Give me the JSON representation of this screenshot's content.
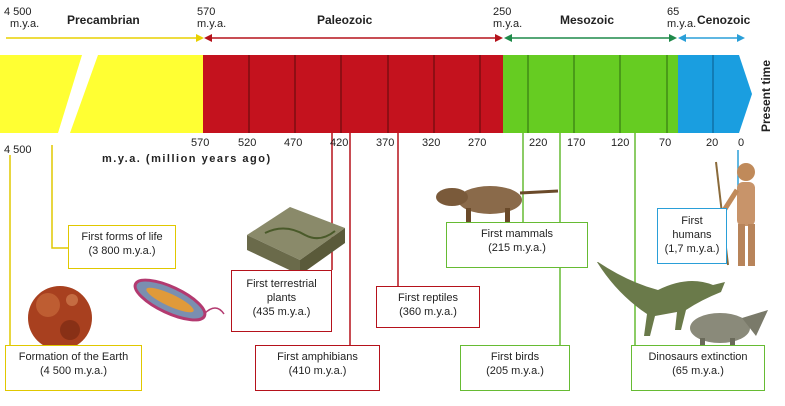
{
  "header": {
    "start": {
      "value": "4 500",
      "unit": "m.y.a."
    },
    "eras": [
      {
        "name": "Precambrian",
        "color": "#f5e300"
      },
      {
        "name": "Paleozoic",
        "color": "#b5121b"
      },
      {
        "name": "Mesozoic",
        "color": "#3a9a3a"
      },
      {
        "name": "Cenozoic",
        "color": "#2a9fd8"
      }
    ],
    "boundaries": [
      {
        "value": "570",
        "unit": "m.y.a."
      },
      {
        "value": "250",
        "unit": "m.y.a."
      },
      {
        "value": "65",
        "unit": "m.y.a."
      }
    ]
  },
  "bar": {
    "present_label": "Present time",
    "colors": {
      "precambrian": "#ffff33",
      "paleozoic": "#c4121e",
      "mesozoic": "#66cc22",
      "cenozoic": "#1a9ee0"
    }
  },
  "ticks": [
    "570",
    "520",
    "470",
    "420",
    "370",
    "320",
    "270",
    "220",
    "170",
    "120",
    "70",
    "20",
    "0"
  ],
  "left_tick": "4 500",
  "axis_label": "m.y.a. (million years ago)",
  "events": [
    {
      "title": "Formation of the Earth",
      "date": "(4 500 m.y.a.)",
      "color": "#e0c800"
    },
    {
      "title": "First forms of life",
      "date": "(3 800 m.y.a.)",
      "color": "#e0c800"
    },
    {
      "title": "First terrestrial plants",
      "date": "(435 m.y.a.)",
      "color": "#b5121b"
    },
    {
      "title": "First amphibians",
      "date": "(410 m.y.a.)",
      "color": "#b5121b"
    },
    {
      "title": "First reptiles",
      "date": "(360 m.y.a.)",
      "color": "#b5121b"
    },
    {
      "title": "First mammals",
      "date": "(215 m.y.a.)",
      "color": "#66bb33"
    },
    {
      "title": "First birds",
      "date": "(205 m.y.a.)",
      "color": "#66bb33"
    },
    {
      "title": "Dinosaurs extinction",
      "date": "(65 m.y.a.)",
      "color": "#66bb33"
    },
    {
      "title": "First humans",
      "date": "(1,7 m.y.a.)",
      "color": "#2a9fd8"
    }
  ],
  "illustrations": [
    "earth-illustration",
    "bacterium-illustration",
    "plant-terrain-illustration",
    "mammal-illustration",
    "dinosaurs-illustration",
    "human-illustration"
  ]
}
